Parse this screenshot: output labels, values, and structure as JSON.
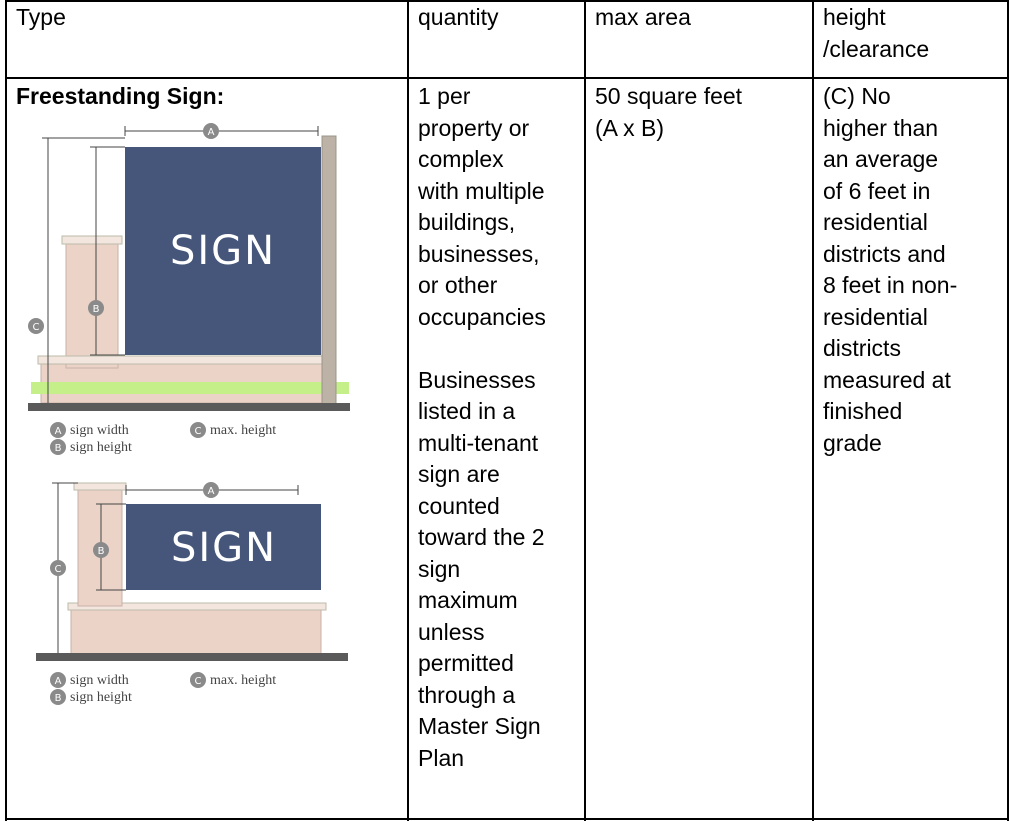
{
  "table": {
    "header": {
      "type": "Type",
      "quantity": "quantity",
      "max_area": "max area",
      "height_lines": [
        "height",
        "/clearance"
      ]
    },
    "row": {
      "type_title": "Freestanding Sign:",
      "diagrams": [
        {
          "sign_text": "SIGN",
          "markers": [
            "A",
            "B",
            "C"
          ],
          "legend": [
            "sign width",
            "max. height",
            "sign height"
          ]
        },
        {
          "sign_text": "SIGN",
          "markers": [
            "A",
            "B",
            "C"
          ],
          "legend": [
            "sign width",
            "max. height",
            "sign height"
          ]
        }
      ],
      "quantity_paragraphs": [
        [
          "1 per",
          "property or",
          "complex",
          "with multiple",
          "buildings,",
          "businesses,",
          "or other",
          "occupancies"
        ],
        [
          "Businesses",
          "listed in a",
          "multi-tenant",
          "sign are",
          "counted",
          "toward the 2",
          "sign",
          "maximum",
          "unless",
          "permitted",
          "through a",
          "Master Sign",
          "Plan"
        ]
      ],
      "max_area_lines": [
        "50 square feet",
        "(A x B)"
      ],
      "height_lines": [
        "(C) No",
        "higher than",
        "an average",
        "of 6 feet in",
        "residential",
        "districts and",
        "8 feet in non-",
        "residential",
        "districts",
        "measured at",
        "finished",
        "grade"
      ]
    }
  }
}
